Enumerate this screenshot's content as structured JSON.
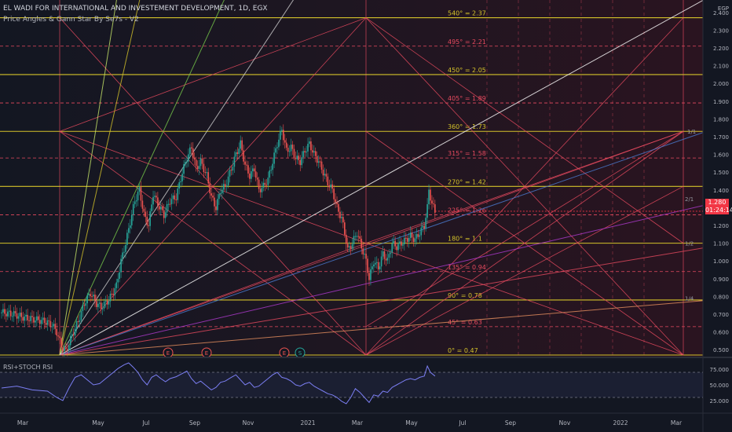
{
  "header": {
    "title": "EL WADI FOR INTERNATIONAL AND INVESTEMENT DEVELOPMENT, 1D, EGX",
    "indicator": "Price Angles & Gann Star By Se7s - V2",
    "currency": "EGP"
  },
  "price_tag": {
    "value": "1.280",
    "countdown": "01:24:14",
    "color": "#f23645"
  },
  "colors": {
    "bg": "#131722",
    "up": "#26a69a",
    "down": "#ef5350",
    "level": "#d4c22a",
    "gann": "#e84a5f",
    "rsi": "#7b7ef2"
  },
  "chart_data": [
    {
      "type": "candlestick",
      "x_ticks": [
        "Mar",
        "May",
        "Jul",
        "Sep",
        "Nov",
        "2021",
        "Mar",
        "May",
        "Jul",
        "Sep",
        "Nov",
        "2022",
        "Mar"
      ],
      "y_ticks": [
        "2.400",
        "2.300",
        "2.200",
        "2.100",
        "2.000",
        "1.900",
        "1.800",
        "1.700",
        "1.600",
        "1.500",
        "1.400",
        "1.300",
        "1.200",
        "1.100",
        "1.000",
        "0.900",
        "0.800",
        "0.700",
        "0.600",
        "0.500"
      ],
      "ylim": [
        0.47,
        2.47
      ],
      "price_path": [
        [
          0,
          0.71
        ],
        [
          8,
          0.7
        ],
        [
          15,
          0.68
        ],
        [
          22,
          0.67
        ],
        [
          28,
          0.66
        ],
        [
          33,
          0.64
        ],
        [
          36,
          0.6
        ],
        [
          39,
          0.52
        ],
        [
          42,
          0.49
        ],
        [
          45,
          0.56
        ],
        [
          50,
          0.66
        ],
        [
          54,
          0.76
        ],
        [
          58,
          0.82
        ],
        [
          62,
          0.76
        ],
        [
          65,
          0.74
        ],
        [
          70,
          0.78
        ],
        [
          75,
          0.86
        ],
        [
          78,
          1.0
        ],
        [
          81,
          1.1
        ],
        [
          84,
          1.22
        ],
        [
          87,
          1.34
        ],
        [
          90,
          1.4
        ],
        [
          93,
          1.26
        ],
        [
          96,
          1.2
        ],
        [
          99,
          1.38
        ],
        [
          102,
          1.32
        ],
        [
          106,
          1.26
        ],
        [
          110,
          1.34
        ],
        [
          114,
          1.36
        ],
        [
          118,
          1.5
        ],
        [
          121,
          1.58
        ],
        [
          124,
          1.64
        ],
        [
          127,
          1.52
        ],
        [
          130,
          1.56
        ],
        [
          134,
          1.48
        ],
        [
          137,
          1.36
        ],
        [
          140,
          1.3
        ],
        [
          143,
          1.4
        ],
        [
          146,
          1.42
        ],
        [
          150,
          1.52
        ],
        [
          153,
          1.6
        ],
        [
          156,
          1.66
        ],
        [
          159,
          1.54
        ],
        [
          162,
          1.48
        ],
        [
          165,
          1.52
        ],
        [
          168,
          1.4
        ],
        [
          171,
          1.42
        ],
        [
          174,
          1.46
        ],
        [
          177,
          1.56
        ],
        [
          180,
          1.66
        ],
        [
          183,
          1.74
        ],
        [
          186,
          1.62
        ],
        [
          189,
          1.64
        ],
        [
          192,
          1.58
        ],
        [
          195,
          1.56
        ],
        [
          198,
          1.62
        ],
        [
          201,
          1.66
        ],
        [
          204,
          1.6
        ],
        [
          207,
          1.56
        ],
        [
          210,
          1.5
        ],
        [
          213,
          1.44
        ],
        [
          216,
          1.4
        ],
        [
          219,
          1.3
        ],
        [
          222,
          1.24
        ],
        [
          224,
          1.16
        ],
        [
          226,
          1.06
        ],
        [
          229,
          1.1
        ],
        [
          232,
          1.16
        ],
        [
          235,
          1.08
        ],
        [
          238,
          1.0
        ],
        [
          240,
          0.9
        ],
        [
          243,
          1.0
        ],
        [
          246,
          0.96
        ],
        [
          249,
          1.04
        ],
        [
          252,
          1.0
        ],
        [
          255,
          1.1
        ],
        [
          258,
          1.08
        ],
        [
          261,
          1.1
        ],
        [
          264,
          1.12
        ],
        [
          267,
          1.14
        ],
        [
          270,
          1.12
        ],
        [
          273,
          1.16
        ],
        [
          276,
          1.2
        ],
        [
          278,
          1.3
        ],
        [
          279,
          1.4
        ],
        [
          281,
          1.32
        ],
        [
          283,
          1.28
        ]
      ],
      "levels": [
        {
          "angle": "0°",
          "value": 0.47,
          "label": "0° = 0.47",
          "style": "solid"
        },
        {
          "angle": "45°",
          "value": 0.63,
          "label": "45° = 0.63",
          "style": "dashed"
        },
        {
          "angle": "90°",
          "value": 0.78,
          "label": "90° = 0.78",
          "style": "solid"
        },
        {
          "angle": "135°",
          "value": 0.94,
          "label": "135° = 0.94",
          "style": "dashed"
        },
        {
          "angle": "180°",
          "value": 1.1,
          "label": "180° = 1.1",
          "style": "solid"
        },
        {
          "angle": "225°",
          "value": 1.26,
          "label": "225° = 1.26",
          "style": "dashed"
        },
        {
          "angle": "270°",
          "value": 1.42,
          "label": "270° = 1.42",
          "style": "solid"
        },
        {
          "angle": "315°",
          "value": 1.58,
          "label": "315° = 1.58",
          "style": "dashed"
        },
        {
          "angle": "360°",
          "value": 1.73,
          "label": "360° = 1.73",
          "style": "solid"
        },
        {
          "angle": "405°",
          "value": 1.89,
          "label": "405° = 1.89",
          "style": "dashed"
        },
        {
          "angle": "450°",
          "value": 2.05,
          "label": "450° = 2.05",
          "style": "solid"
        },
        {
          "angle": "495°",
          "value": 2.21,
          "label": "495° = 2.21",
          "style": "dashed"
        },
        {
          "angle": "540°",
          "value": 2.37,
          "label": "540° = 2.37",
          "style": "solid"
        }
      ],
      "fan_labels": [
        "1/1",
        "2/1",
        "1/2",
        "1/4"
      ],
      "events": [
        "E",
        "E",
        "E",
        "S"
      ]
    },
    {
      "type": "line",
      "title": "RSI+STOCH RSI",
      "y_ticks": [
        "75.000",
        "50.000",
        "25.000"
      ],
      "ylim": [
        10,
        90
      ],
      "bands": [
        70,
        30
      ],
      "values": [
        [
          0,
          45
        ],
        [
          10,
          48
        ],
        [
          20,
          42
        ],
        [
          30,
          40
        ],
        [
          36,
          30
        ],
        [
          40,
          25
        ],
        [
          44,
          45
        ],
        [
          48,
          62
        ],
        [
          52,
          66
        ],
        [
          56,
          58
        ],
        [
          60,
          50
        ],
        [
          64,
          52
        ],
        [
          68,
          60
        ],
        [
          72,
          68
        ],
        [
          76,
          76
        ],
        [
          80,
          82
        ],
        [
          83,
          85
        ],
        [
          86,
          78
        ],
        [
          89,
          70
        ],
        [
          92,
          58
        ],
        [
          95,
          50
        ],
        [
          98,
          62
        ],
        [
          101,
          66
        ],
        [
          104,
          60
        ],
        [
          107,
          55
        ],
        [
          110,
          60
        ],
        [
          114,
          63
        ],
        [
          118,
          68
        ],
        [
          121,
          72
        ],
        [
          124,
          60
        ],
        [
          127,
          52
        ],
        [
          130,
          56
        ],
        [
          134,
          48
        ],
        [
          137,
          42
        ],
        [
          140,
          46
        ],
        [
          143,
          54
        ],
        [
          146,
          56
        ],
        [
          150,
          62
        ],
        [
          153,
          66
        ],
        [
          156,
          58
        ],
        [
          159,
          50
        ],
        [
          162,
          54
        ],
        [
          165,
          46
        ],
        [
          168,
          48
        ],
        [
          171,
          54
        ],
        [
          174,
          60
        ],
        [
          177,
          66
        ],
        [
          180,
          70
        ],
        [
          183,
          62
        ],
        [
          186,
          60
        ],
        [
          189,
          56
        ],
        [
          192,
          50
        ],
        [
          195,
          48
        ],
        [
          198,
          52
        ],
        [
          201,
          54
        ],
        [
          204,
          48
        ],
        [
          207,
          44
        ],
        [
          210,
          40
        ],
        [
          213,
          36
        ],
        [
          216,
          34
        ],
        [
          219,
          30
        ],
        [
          222,
          24
        ],
        [
          225,
          20
        ],
        [
          228,
          30
        ],
        [
          231,
          44
        ],
        [
          234,
          38
        ],
        [
          237,
          30
        ],
        [
          240,
          22
        ],
        [
          243,
          34
        ],
        [
          246,
          32
        ],
        [
          249,
          40
        ],
        [
          252,
          38
        ],
        [
          255,
          46
        ],
        [
          258,
          50
        ],
        [
          261,
          54
        ],
        [
          264,
          58
        ],
        [
          267,
          60
        ],
        [
          270,
          58
        ],
        [
          273,
          62
        ],
        [
          276,
          64
        ],
        [
          278,
          80
        ],
        [
          280,
          70
        ],
        [
          283,
          64
        ]
      ]
    }
  ]
}
